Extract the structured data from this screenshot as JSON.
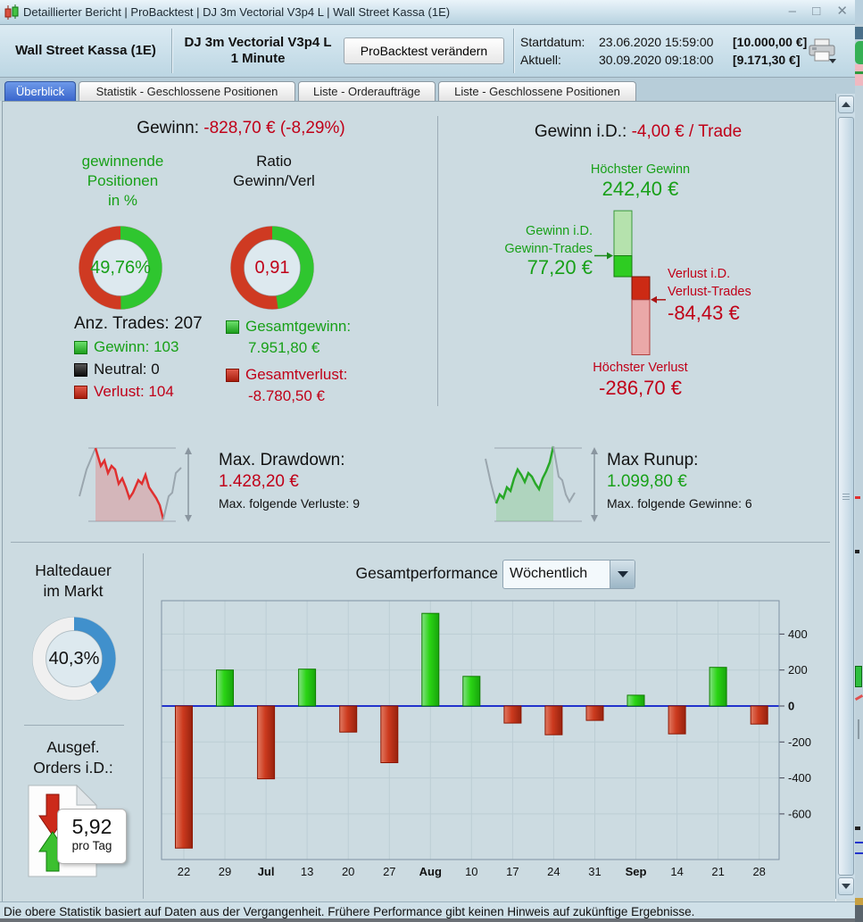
{
  "window": {
    "title": "Detaillierter Bericht | ProBacktest | DJ 3m Vectorial V3p4 L | Wall Street Kassa (1E)",
    "controls": {
      "minimize": "–",
      "maximize": "□",
      "close": "✕"
    }
  },
  "header": {
    "account": "Wall Street Kassa (1E)",
    "strategy": "DJ 3m Vectorial V3p4 L\n1 Minute",
    "backtest_button": "ProBacktest verändern",
    "start_label": "Startdatum:",
    "start_datetime": "23.06.2020 15:59:00",
    "start_amount": "[10.000,00 €]",
    "current_label": "Aktuell:",
    "current_datetime": "30.09.2020 09:18:00",
    "current_amount": "[9.171,30 €]"
  },
  "tabs": [
    {
      "label": "Überblick",
      "active": true
    },
    {
      "label": "Statistik - Geschlossene Positionen",
      "active": false
    },
    {
      "label": "Liste - Orderaufträge",
      "active": false
    },
    {
      "label": "Liste - Geschlossene Positionen",
      "active": false
    }
  ],
  "overview": {
    "profit_label": "Gewinn:",
    "profit_value": "-828,70 € (-8,29%)",
    "winning_positions_label": "gewinnende\nPositionen\nin %",
    "winning_pct_text": "49,76%",
    "ratio_label": "Ratio\nGewinn/Verl",
    "ratio_text": "0,91",
    "trades_total": "Anz. Trades: 207",
    "legend": [
      {
        "label": "Gewinn: 103"
      },
      {
        "label": "Neutral: 0"
      },
      {
        "label": "Verlust: 104"
      }
    ],
    "total_profit_label": "Gesamtgewinn:",
    "total_profit_value": "7.951,80 €",
    "total_loss_label": "Gesamtverlust:",
    "total_loss_value": "-8.780,50 €",
    "per_trade_label": "Gewinn i.D.:",
    "per_trade_value": "-4,00 € / Trade",
    "highest_win_label": "Höchster Gewinn",
    "highest_win_value": "242,40 €",
    "avg_win_label": "Gewinn i.D.\nGewinn-Trades",
    "avg_win_value": "77,20 €",
    "avg_loss_label": "Verlust i.D.\nVerlust-Trades",
    "avg_loss_value": "-84,43 €",
    "highest_loss_label": "Höchster Verlust",
    "highest_loss_value": "-286,70 €"
  },
  "drawdown": {
    "title": "Max. Drawdown:",
    "value": "1.428,20 €",
    "note": "Max. folgende Verluste: 9"
  },
  "runup": {
    "title": "Max Runup:",
    "value": "1.099,80 €",
    "note": "Max. folgende Gewinne: 6"
  },
  "holding": {
    "label": "Haltedauer\nim Markt",
    "pct_text": "40,3%"
  },
  "orders": {
    "label": "Ausgef.\nOrders i.D.:",
    "value": "5,92",
    "unit": "pro Tag"
  },
  "performance": {
    "title": "Gesamtperformance",
    "period": "Wöchentlich"
  },
  "statusbar": {
    "text": "Die obere Statistik basiert auf Daten aus der Vergangenheit. Frühere Performance gibt keinen Hinweis auf zukünftige Ergebnisse."
  },
  "icons": {
    "titlebar_candles": "red-green-candlestick-pair",
    "printer": "printer-with-dropdown",
    "dropdown_arrow": "▼",
    "scroll_up": "▲",
    "scroll_down": "▼",
    "order_down_arrow": "red-block-arrow-down",
    "order_up_arrow": "green-block-arrow-up"
  },
  "colors": {
    "text_green": "#18a018",
    "text_red": "#c00018",
    "donut_green": "#2fc62f",
    "donut_red": "#cf3a22",
    "donut_blue": "#4090cc",
    "donut_gray": "#f0f0f0",
    "bar_green_main": "#2ad414",
    "bar_red_main": "#cc3a1e",
    "zero_line": "#2233cc",
    "viz_light_green": "#b5e2ad",
    "viz_bright_green": "#2ecc22",
    "viz_dark_red": "#cc2a14",
    "viz_light_red": "#eaa8a8",
    "active_tab": "#3a66cc"
  },
  "chart_data": [
    {
      "name": "winning-positions-donut",
      "type": "pie",
      "labels": [
        "Gewinn",
        "Verlust"
      ],
      "values": [
        49.76,
        50.24
      ],
      "unit": "%",
      "center_text": "49,76%"
    },
    {
      "name": "ratio-gewinn-verlust-donut",
      "type": "pie",
      "labels": [
        "Gewinn",
        "Verlust"
      ],
      "values": [
        47.64,
        52.36
      ],
      "ratio_value": 0.91,
      "center_text": "0,91"
    },
    {
      "name": "trade-extremes",
      "type": "bar",
      "points": {
        "highest_win": 242.4,
        "avg_win": 77.2,
        "avg_loss": -84.43,
        "highest_loss": -286.7
      },
      "unit": "EUR"
    },
    {
      "name": "holding-time-donut",
      "type": "pie",
      "values": [
        40.3,
        59.7
      ],
      "unit": "%",
      "center_text": "40,3%"
    },
    {
      "name": "weekly-performance",
      "type": "bar",
      "title": "Gesamtperformance (Wöchentlich)",
      "categories": [
        "22",
        "29",
        "Jul",
        "13",
        "20",
        "27",
        "Aug",
        "10",
        "17",
        "24",
        "31",
        "Sep",
        "14",
        "21",
        "28"
      ],
      "values": [
        -790,
        200,
        -405,
        205,
        -145,
        -315,
        515,
        165,
        -95,
        -160,
        -80,
        60,
        -155,
        215,
        -100
      ],
      "bold_categories": [
        "Jul",
        "Aug",
        "Sep"
      ],
      "yticks": [
        400,
        200,
        0,
        -200,
        -400,
        -600
      ],
      "ylim": [
        -860,
        590
      ],
      "xlabel": "",
      "ylabel": "",
      "grid": true,
      "legend": "none"
    }
  ]
}
